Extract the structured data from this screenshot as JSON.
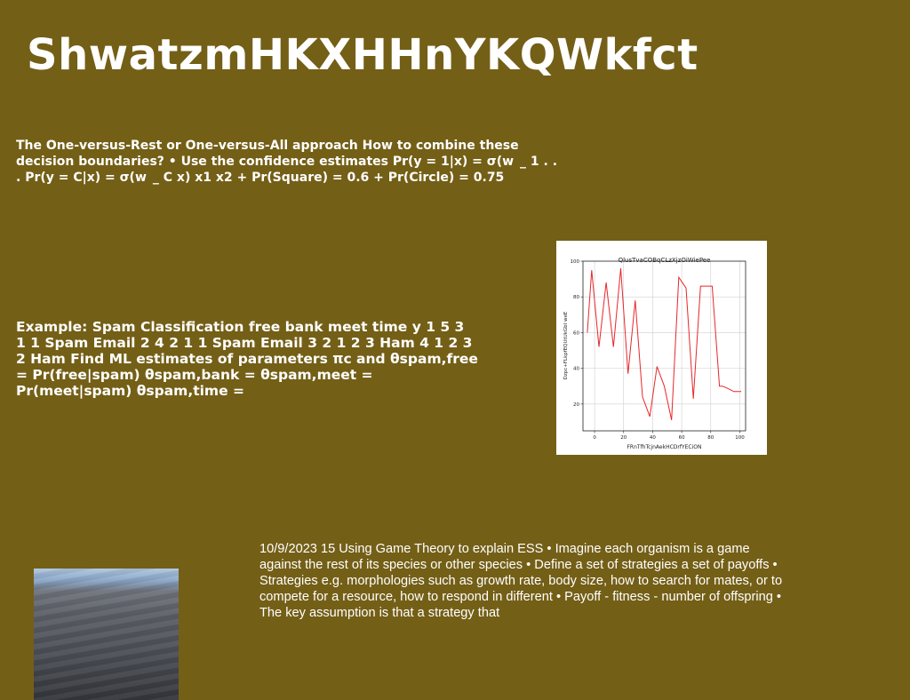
{
  "title": "ShwatzmHKXHHnYKQWkfct",
  "paragraph_1": "The One-versus-Rest or One-versus-All approach How to combine these decision boundaries? • Use the confidence estimates Pr(y = 1|x) = σ(w ̲ 1 . . . Pr(y = C|x) = σ(w ̲ C x) x1 x2 + Pr(Square) = 0.6 + Pr(Circle) = 0.75",
  "paragraph_2": "Example: Spam Classification free bank meet time y 1 5 3 1 1 Spam Email 2 4 2 1 1 Spam Email 3 2 1 2 3 Ham 4 1 2 3 2 Ham Find ML estimates of parameters πc and θspam,free = Pr(free|spam) θspam,bank = θspam,meet = Pr(meet|spam) θspam,time =",
  "paragraph_3": "10/9/2023 15 Using Game Theory to explain ESS • Imagine each organism is a game against the rest of its species or other species • Define a set of strategies a set of payoffs • Strategies e.g. morphologies such as growth rate, body size, how to search for mates, or to compete for a resource, how to respond in different • Payoff - fitness - number of offspring • The key assumption is that a strategy that",
  "chart_data": {
    "type": "line",
    "title": "QlusTvaCOBqCLzXjzOiWiePee",
    "xlabel": "FRnTfhTcjnAekHCDrfYECiON",
    "ylabel": "Dzpc+FLkpfEQUtUkGbI weE",
    "xlim": [
      -8,
      104
    ],
    "ylim": [
      5,
      100
    ],
    "x_ticks": [
      0,
      20,
      40,
      60,
      80,
      100
    ],
    "y_ticks": [
      20,
      40,
      60,
      80,
      100
    ],
    "grid": true,
    "series": [
      {
        "color": "#e8262b",
        "x": [
          -5,
          -2,
          3,
          8,
          13,
          18,
          23,
          28,
          33,
          38,
          43,
          48,
          53,
          58,
          63,
          68,
          73,
          78,
          81,
          86,
          88,
          91,
          96,
          101
        ],
        "y": [
          60,
          95,
          52,
          88,
          52,
          96,
          37,
          78,
          24,
          13,
          41,
          30,
          11,
          91,
          85,
          23,
          86,
          86,
          86,
          30,
          30,
          29,
          27,
          27
        ]
      }
    ]
  },
  "photo": {
    "description_icon": "sand-dune-photo"
  }
}
